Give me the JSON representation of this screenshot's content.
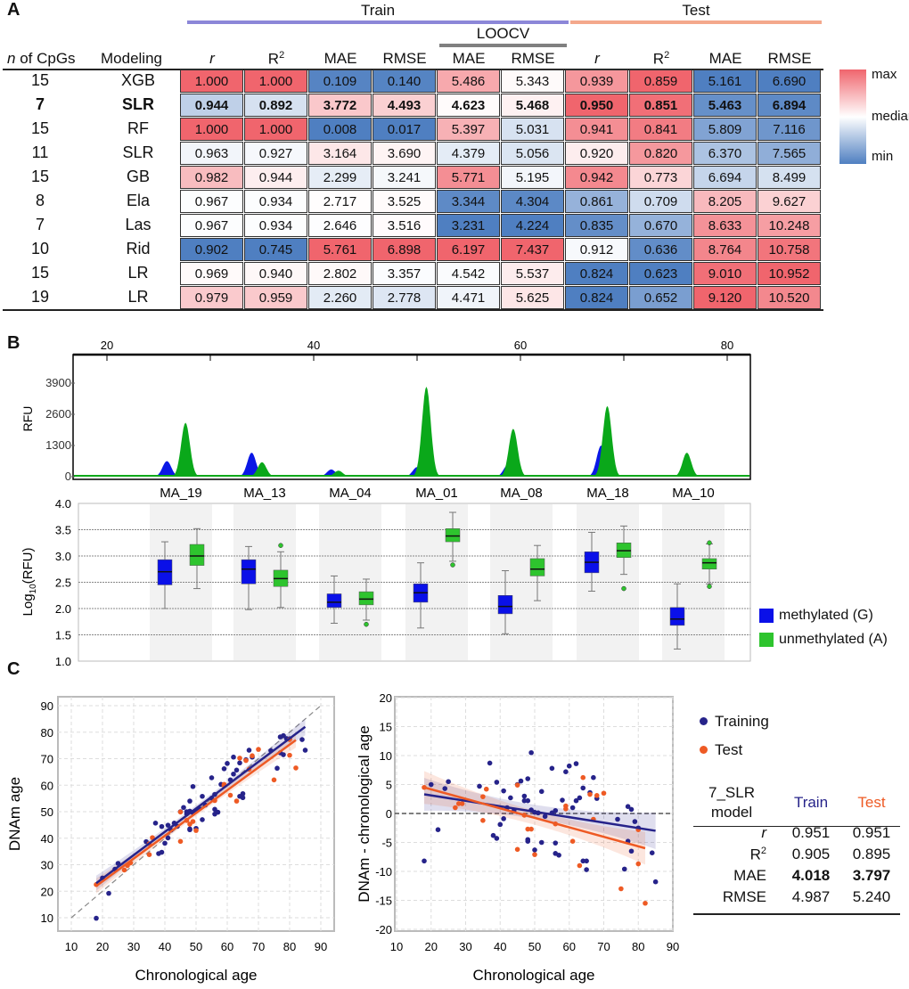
{
  "panel_labels": {
    "a": "A",
    "b": "B",
    "c": "C"
  },
  "table": {
    "group_headers": {
      "train": "Train",
      "test": "Test",
      "loocv": "LOOCV"
    },
    "group_colors": {
      "train": "#8c87d8",
      "test": "#f4a88c",
      "loocv": "#808080"
    },
    "id_headers": {
      "n_italic": "n",
      "n_rest": " of CpGs",
      "model": "Modeling"
    },
    "columns": [
      {
        "label": "r",
        "italic": true
      },
      {
        "label": "R",
        "sup": "2"
      },
      {
        "label": "MAE"
      },
      {
        "label": "RMSE"
      },
      {
        "label": "MAE"
      },
      {
        "label": "RMSE"
      },
      {
        "label": "r",
        "italic": true
      },
      {
        "label": "R",
        "sup": "2"
      },
      {
        "label": "MAE"
      },
      {
        "label": "RMSE"
      }
    ],
    "rows": [
      {
        "n": "15",
        "model": "XGB",
        "bold": false,
        "values": [
          "1.000",
          "1.000",
          "0.109",
          "0.140",
          "5.486",
          "5.343",
          "0.939",
          "0.859",
          "5.161",
          "6.690"
        ]
      },
      {
        "n": "7",
        "model": "SLR",
        "bold": true,
        "values": [
          "0.944",
          "0.892",
          "3.772",
          "4.493",
          "4.623",
          "5.468",
          "0.950",
          "0.851",
          "5.463",
          "6.894"
        ]
      },
      {
        "n": "15",
        "model": "RF",
        "bold": false,
        "values": [
          "1.000",
          "1.000",
          "0.008",
          "0.017",
          "5.397",
          "5.031",
          "0.941",
          "0.841",
          "5.809",
          "7.116"
        ]
      },
      {
        "n": "11",
        "model": "SLR",
        "bold": false,
        "values": [
          "0.963",
          "0.927",
          "3.164",
          "3.690",
          "4.379",
          "5.056",
          "0.920",
          "0.820",
          "6.370",
          "7.565"
        ]
      },
      {
        "n": "15",
        "model": "GB",
        "bold": false,
        "values": [
          "0.982",
          "0.944",
          "2.299",
          "3.241",
          "5.771",
          "5.195",
          "0.942",
          "0.773",
          "6.694",
          "8.499"
        ]
      },
      {
        "n": "8",
        "model": "Ela",
        "bold": false,
        "values": [
          "0.967",
          "0.934",
          "2.717",
          "3.525",
          "3.344",
          "4.304",
          "0.861",
          "0.709",
          "8.205",
          "9.627"
        ]
      },
      {
        "n": "7",
        "model": "Las",
        "bold": false,
        "values": [
          "0.967",
          "0.934",
          "2.646",
          "3.516",
          "3.231",
          "4.224",
          "0.835",
          "0.670",
          "8.633",
          "10.248"
        ]
      },
      {
        "n": "10",
        "model": "Rid",
        "bold": false,
        "values": [
          "0.902",
          "0.745",
          "5.761",
          "6.898",
          "6.197",
          "7.437",
          "0.912",
          "0.636",
          "8.764",
          "10.758"
        ]
      },
      {
        "n": "15",
        "model": "LR",
        "bold": false,
        "values": [
          "0.969",
          "0.940",
          "2.802",
          "3.357",
          "4.542",
          "5.537",
          "0.824",
          "0.623",
          "9.010",
          "10.952"
        ]
      },
      {
        "n": "19",
        "model": "LR",
        "bold": false,
        "values": [
          "0.979",
          "0.959",
          "2.260",
          "2.778",
          "4.471",
          "5.625",
          "0.824",
          "0.652",
          "9.120",
          "10.520"
        ]
      }
    ],
    "legend": {
      "max": "max",
      "median": "median",
      "min": "min"
    },
    "colors": {
      "max": "#f0656d",
      "median": "#ffffff",
      "min": "#4f7fc1"
    }
  },
  "chart_data": [
    {
      "type": "area",
      "name": "chromatogram",
      "ylabel": "RFU",
      "xticks": [
        20,
        40,
        60,
        80
      ],
      "yticks": [
        0,
        1300,
        2600,
        3900
      ],
      "xlim": [
        11,
        100
      ],
      "ylim": [
        0,
        4600
      ],
      "series": [
        {
          "color": "#0a18e6",
          "peaks": [
            [
              25.8,
              650
            ],
            [
              34.0,
              1000
            ],
            [
              41.7,
              300
            ],
            [
              50.0,
              400
            ],
            [
              58.8,
              500
            ],
            [
              67.8,
              1300
            ],
            [
              75.7,
              100
            ]
          ]
        },
        {
          "color": "#0aa81a",
          "peaks": [
            [
              27.6,
              2250
            ],
            [
              35.0,
              600
            ],
            [
              42.4,
              250
            ],
            [
              50.9,
              3750
            ],
            [
              59.3,
              2000
            ],
            [
              68.4,
              2950
            ],
            [
              76.1,
              1000
            ]
          ]
        }
      ]
    },
    {
      "type": "box",
      "name": "log-rfu-boxplot",
      "ylabel": {
        "base": "Log",
        "sub": "10",
        "rest": "(RFU)"
      },
      "ylim": [
        1.0,
        4.0
      ],
      "yticks": [
        "1.0",
        "1.5",
        "2.0",
        "2.5",
        "3.0",
        "3.5",
        "4.0"
      ],
      "categories": [
        "MA_19",
        "MA_13",
        "MA_04",
        "MA_01",
        "MA_08",
        "MA_18",
        "MA_10"
      ],
      "series": [
        {
          "name": "methylated (G)",
          "color": "#0a10e8",
          "boxes": [
            [
              2.0,
              2.45,
              2.7,
              2.93,
              3.27,
              []
            ],
            [
              1.98,
              2.47,
              2.75,
              2.93,
              3.18,
              []
            ],
            [
              1.72,
              2.02,
              2.12,
              2.28,
              2.62,
              []
            ],
            [
              1.63,
              2.12,
              2.3,
              2.47,
              2.87,
              []
            ],
            [
              1.52,
              1.9,
              2.04,
              2.25,
              2.72,
              []
            ],
            [
              2.33,
              2.68,
              2.88,
              3.08,
              3.45,
              []
            ],
            [
              1.23,
              1.68,
              1.8,
              2.02,
              2.47,
              []
            ]
          ]
        },
        {
          "name": "unmethylated (A)",
          "color": "#2ec42e",
          "boxes": [
            [
              2.38,
              2.82,
              3.0,
              3.22,
              3.52,
              []
            ],
            [
              2.02,
              2.42,
              2.57,
              2.73,
              3.08,
              [
                3.2
              ]
            ],
            [
              1.78,
              2.07,
              2.18,
              2.32,
              2.56,
              [
                1.7
              ]
            ],
            [
              2.9,
              3.27,
              3.38,
              3.52,
              3.83,
              [
                2.83
              ]
            ],
            [
              2.15,
              2.62,
              2.75,
              2.95,
              3.2,
              []
            ],
            [
              2.65,
              2.97,
              3.1,
              3.25,
              3.57,
              [
                2.38
              ]
            ],
            [
              2.47,
              2.75,
              2.87,
              2.95,
              3.23,
              [
                3.25,
                2.42
              ]
            ]
          ]
        }
      ]
    },
    {
      "type": "scatter",
      "name": "dnam-vs-chronological",
      "xlabel": "Chronological age",
      "ylabel": "DNAm age",
      "xlim": [
        10,
        90
      ],
      "ylim": [
        10,
        90
      ],
      "xticks": [
        10,
        20,
        30,
        40,
        50,
        60,
        70,
        80,
        90
      ],
      "yticks": [
        10,
        20,
        30,
        40,
        50,
        60,
        70,
        80,
        90
      ],
      "identity_line": true,
      "fits": [
        {
          "series": "Training",
          "slope": 0.88,
          "intercept": 7.2,
          "x": [
            18,
            85
          ]
        },
        {
          "series": "Test",
          "slope": 0.86,
          "intercept": 6.5,
          "x": [
            18,
            82
          ]
        }
      ]
    },
    {
      "type": "scatter",
      "name": "residual-vs-chronological",
      "xlabel": "Chronological age",
      "ylabel": "DNAm - chronological age",
      "xlim": [
        10,
        90
      ],
      "ylim": [
        -20,
        20
      ],
      "xticks": [
        10,
        20,
        30,
        40,
        50,
        60,
        70,
        80,
        90
      ],
      "yticks": [
        -20,
        -15,
        -10,
        -5,
        0,
        5,
        10,
        15,
        20
      ],
      "zero_line": true,
      "fits": [
        {
          "series": "Training",
          "slope": -0.094,
          "intercept": 5.0,
          "x": [
            18,
            85
          ]
        },
        {
          "series": "Test",
          "slope": -0.164,
          "intercept": 7.45,
          "x": [
            18,
            82
          ]
        }
      ]
    }
  ],
  "points": {
    "note_units": "chronological age, residual (DNAm - chronological age)",
    "Training": [
      [
        18,
        -8.2
      ],
      [
        20,
        5
      ],
      [
        22,
        -2.8
      ],
      [
        24,
        4.3
      ],
      [
        25,
        5.5
      ],
      [
        34,
        4.7
      ],
      [
        37,
        8.7
      ],
      [
        38,
        -3.8
      ],
      [
        39,
        -4.3
      ],
      [
        39,
        5.4
      ],
      [
        40,
        -1.9
      ],
      [
        41,
        -0.9
      ],
      [
        41,
        3.9
      ],
      [
        42,
        1
      ],
      [
        43,
        2.7
      ],
      [
        44,
        0.5
      ],
      [
        45,
        5
      ],
      [
        46,
        5.6
      ],
      [
        47,
        3
      ],
      [
        47,
        2.2
      ],
      [
        48,
        6
      ],
      [
        48,
        -4.5
      ],
      [
        48,
        -4.8
      ],
      [
        48,
        2.2
      ],
      [
        49,
        10.5
      ],
      [
        49,
        0.6
      ],
      [
        50,
        -6.3
      ],
      [
        50,
        0.2
      ],
      [
        51,
        0.1
      ],
      [
        52,
        3.8
      ],
      [
        52,
        -5
      ],
      [
        53,
        -0.5
      ],
      [
        55,
        7.8
      ],
      [
        55,
        0.1
      ],
      [
        56,
        0.5
      ],
      [
        56,
        -5.1
      ],
      [
        56,
        -6.9
      ],
      [
        57,
        -7.2
      ],
      [
        58,
        2.3
      ],
      [
        59,
        7.2
      ],
      [
        60,
        8.2
      ],
      [
        61,
        1
      ],
      [
        62,
        2.2
      ],
      [
        62,
        8.6
      ],
      [
        63,
        2.7
      ],
      [
        64,
        4.4
      ],
      [
        64,
        -8.2
      ],
      [
        65,
        -9.7
      ],
      [
        65,
        -8.2
      ],
      [
        66,
        3.6
      ],
      [
        67,
        6.2
      ],
      [
        68,
        2.6
      ],
      [
        74,
        -1
      ],
      [
        76,
        -9.6
      ],
      [
        77,
        1.2
      ],
      [
        77,
        -4.8
      ],
      [
        78,
        0.7
      ],
      [
        78,
        -6.5
      ],
      [
        79,
        -1.4
      ],
      [
        80,
        -2.5
      ],
      [
        84,
        -6.8
      ],
      [
        85,
        -11.8
      ]
    ],
    "Test": [
      [
        18,
        4.5
      ],
      [
        27,
        1
      ],
      [
        28,
        1.7
      ],
      [
        29,
        1.7
      ],
      [
        35,
        2.9
      ],
      [
        35,
        -1.2
      ],
      [
        36,
        4.2
      ],
      [
        45,
        4.9
      ],
      [
        45,
        -6.2
      ],
      [
        47,
        -0.3
      ],
      [
        48,
        -2.7
      ],
      [
        49,
        -2.7
      ],
      [
        50,
        -7.1
      ],
      [
        56,
        -1.8
      ],
      [
        59,
        1.3
      ],
      [
        59,
        0.8
      ],
      [
        61,
        -4.8
      ],
      [
        63,
        -9
      ],
      [
        64,
        6.2
      ],
      [
        66,
        3.3
      ],
      [
        67,
        -1
      ],
      [
        68,
        3.1
      ],
      [
        70,
        3.5
      ],
      [
        75,
        -13
      ],
      [
        80,
        -8.7
      ],
      [
        80,
        -2.8
      ],
      [
        82,
        -15.5
      ]
    ]
  },
  "series_colors": {
    "Training": "#26238a",
    "Test": "#ee5a24"
  },
  "legend_c": [
    "Training",
    "Test"
  ],
  "legend_b": [
    "methylated (G)",
    "unmethylated (A)"
  ],
  "summary": {
    "model_line1": "7_SLR",
    "model_line2": "model",
    "train": "Train",
    "test": "Test",
    "rows": [
      {
        "metric": "r",
        "italic": true,
        "train": "0.951",
        "test": "0.951"
      },
      {
        "metric": "R",
        "sup": "2",
        "train": "0.905",
        "test": "0.895"
      },
      {
        "metric": "MAE",
        "bold": true,
        "train": "4.018",
        "test": "3.797"
      },
      {
        "metric": "RMSE",
        "train": "4.987",
        "test": "5.240"
      }
    ]
  }
}
